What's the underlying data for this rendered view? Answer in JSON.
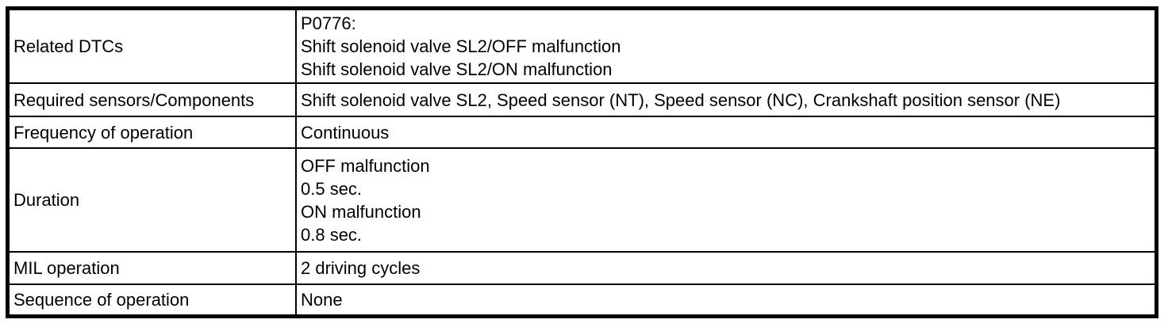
{
  "colors": {
    "background": "#ffffff",
    "border": "#000000",
    "text": "#000000"
  },
  "table": {
    "rows": [
      {
        "label": "Related DTCs",
        "value": "P0776:\nShift solenoid valve SL2/OFF malfunction\nShift solenoid valve SL2/ON malfunction"
      },
      {
        "label": "Required sensors/Components",
        "value": "Shift solenoid valve SL2, Speed sensor (NT), Speed sensor (NC), Crankshaft position sensor (NE)"
      },
      {
        "label": "Frequency of operation",
        "value": "Continuous"
      },
      {
        "label": "Duration",
        "value": "OFF malfunction\n0.5 sec.\nON malfunction\n0.8 sec."
      },
      {
        "label": "MIL operation",
        "value": "2 driving cycles"
      },
      {
        "label": "Sequence of operation",
        "value": "None"
      }
    ]
  }
}
